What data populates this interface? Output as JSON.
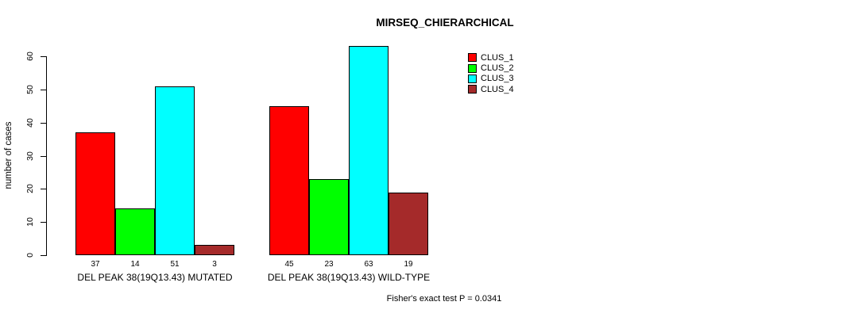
{
  "chart_data": {
    "type": "bar",
    "title": "MIRSEQ_CHIERARCHICAL",
    "xlabel": "",
    "ylabel": "number of cases",
    "ylim": [
      0,
      63
    ],
    "yticks": [
      0,
      10,
      20,
      30,
      40,
      50,
      60
    ],
    "grid": false,
    "categories": [
      "DEL PEAK 38(19Q13.43) MUTATED",
      "DEL PEAK 38(19Q13.43) WILD-TYPE"
    ],
    "series": [
      {
        "name": "CLUS_1",
        "color": "#ff0000",
        "values": [
          37,
          45
        ]
      },
      {
        "name": "CLUS_2",
        "color": "#00ff00",
        "values": [
          14,
          23
        ]
      },
      {
        "name": "CLUS_3",
        "color": "#00ffff",
        "values": [
          51,
          63
        ]
      },
      {
        "name": "CLUS_4",
        "color": "#a52a2a",
        "values": [
          3,
          19
        ]
      }
    ],
    "value_labels_shown": true,
    "legend_position": "top-right",
    "legend_entries": [
      "CLUS_1",
      "CLUS_2",
      "CLUS_3",
      "CLUS_4"
    ],
    "annotation": "Fisher's exact test P = 0.0341"
  }
}
